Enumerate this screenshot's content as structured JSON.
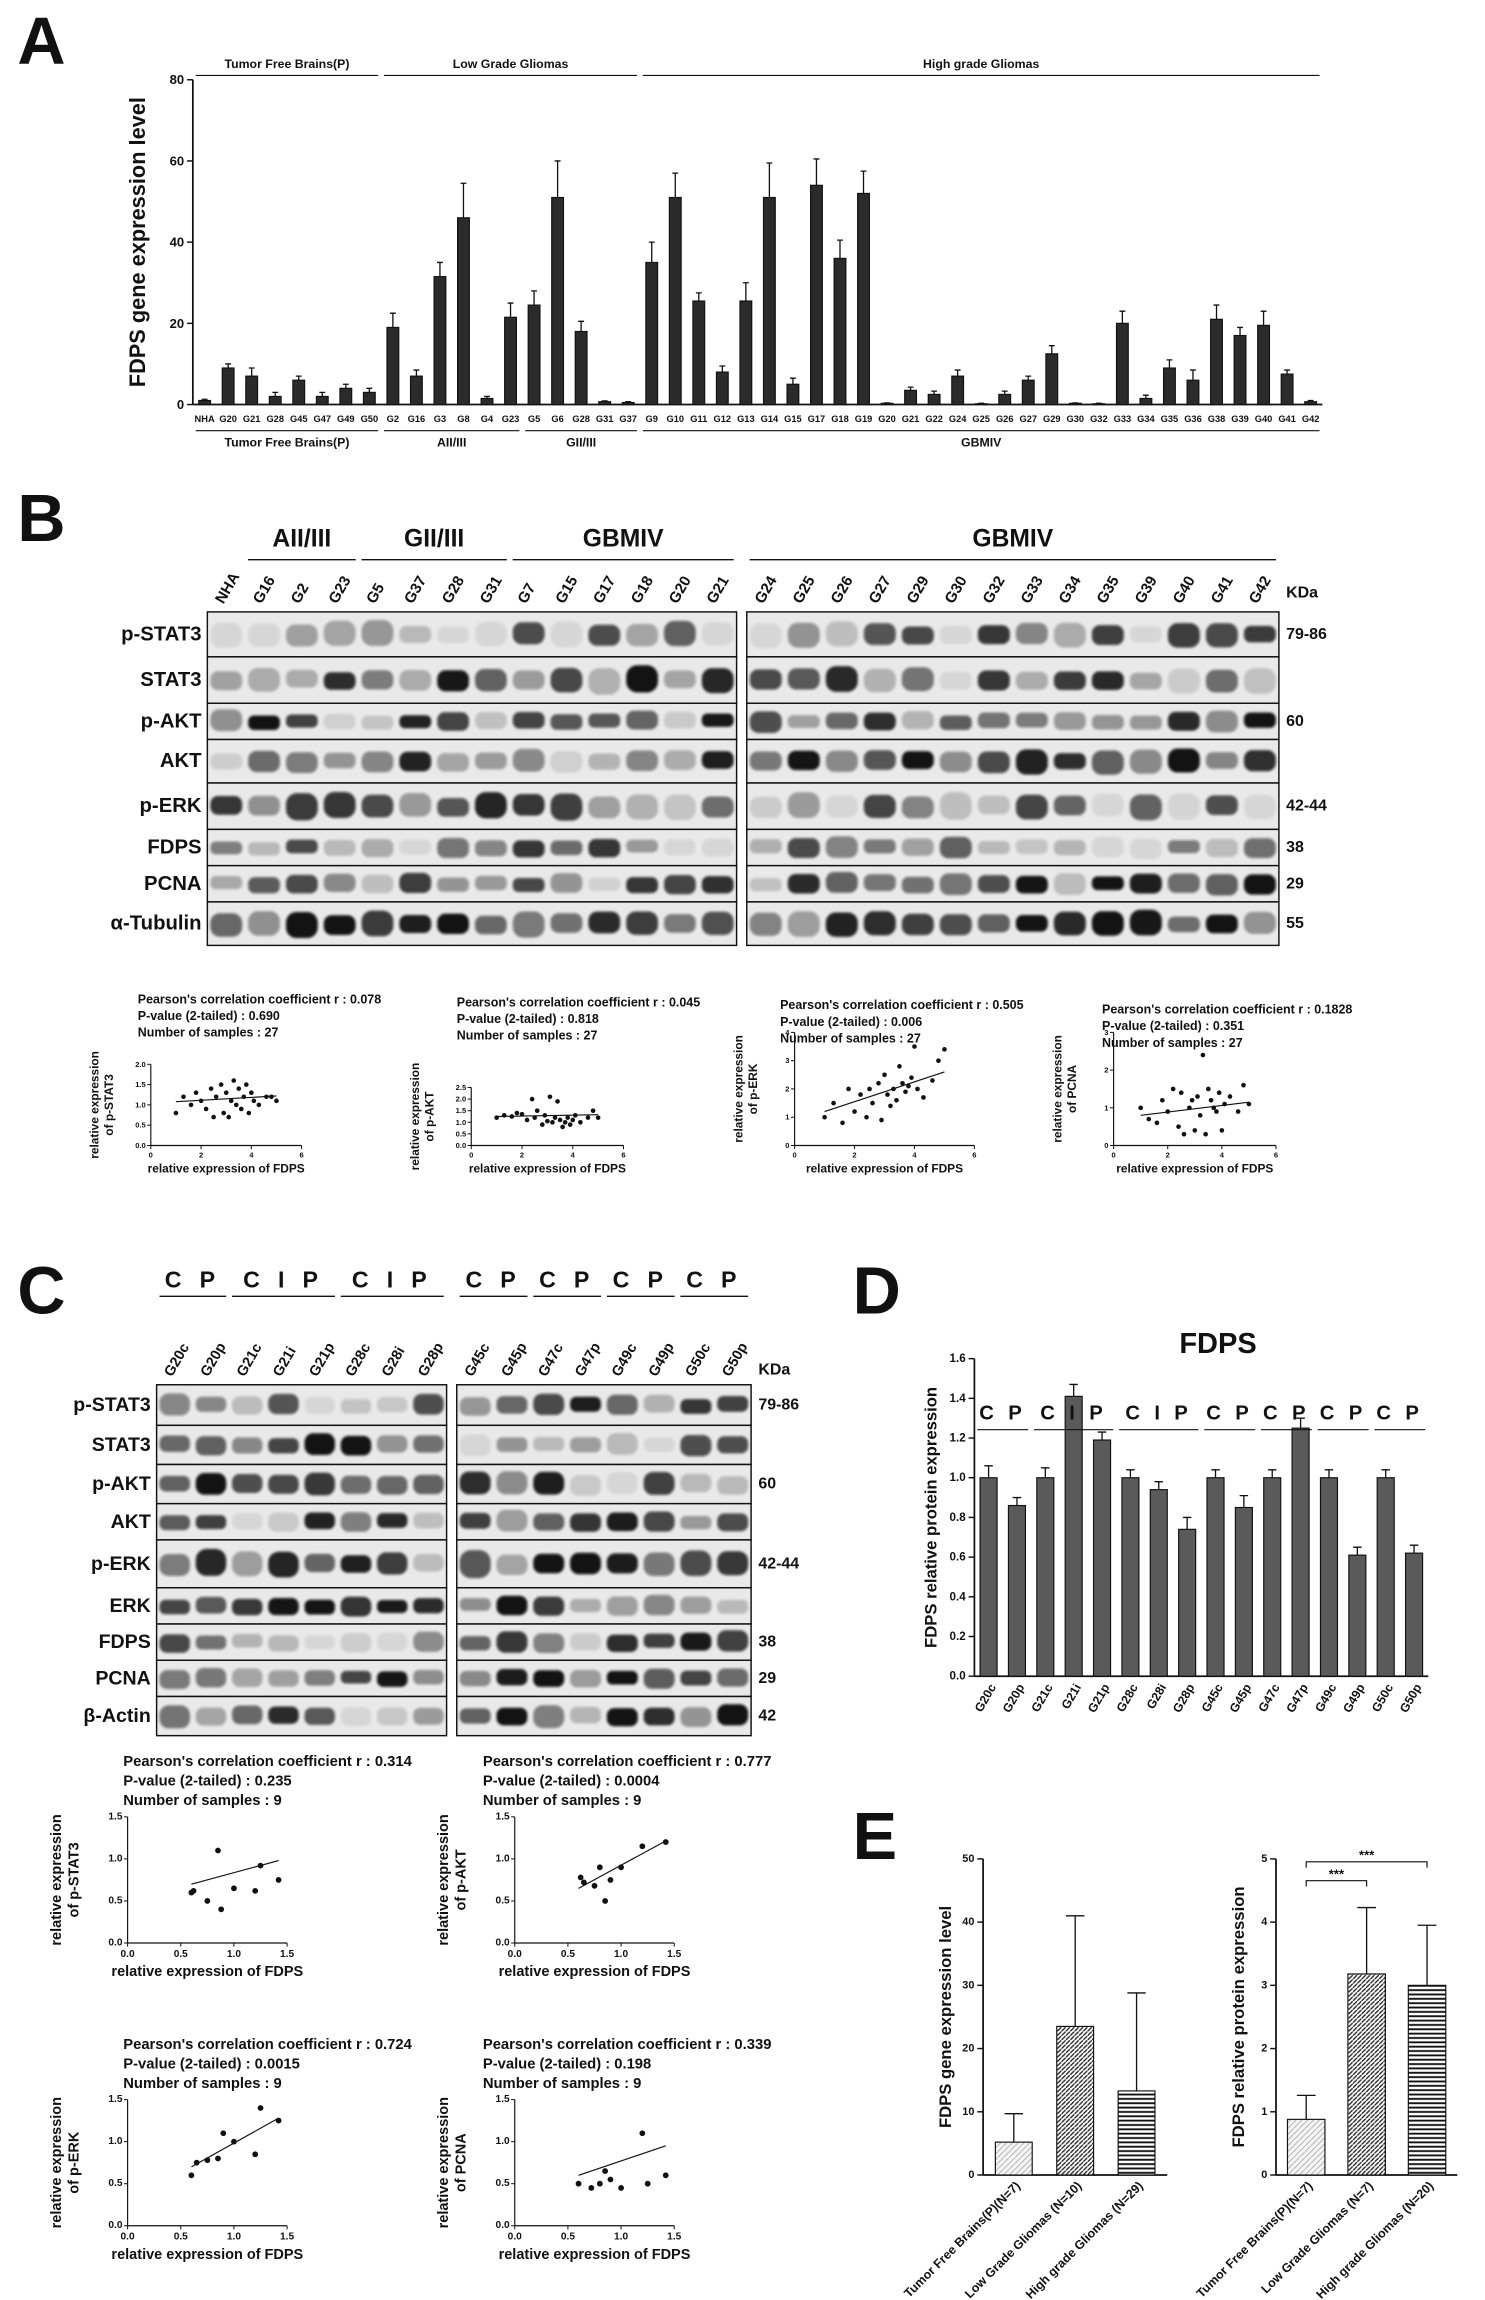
{
  "panel_labels": [
    "A",
    "B",
    "C",
    "D",
    "E"
  ],
  "chart_data": [
    {
      "type": "bar",
      "ylabel": "FDPS gene expression level",
      "categories": [
        "NHA",
        "G20",
        "G21",
        "G28",
        "G45",
        "G47",
        "G49",
        "G50",
        "G2",
        "G16",
        "G3",
        "G8",
        "G4",
        "G23",
        "G5",
        "G6",
        "G28",
        "G31",
        "G37",
        "G9",
        "G10",
        "G11",
        "G12",
        "G13",
        "G14",
        "G15",
        "G17",
        "G18",
        "G19",
        "G20",
        "G21",
        "G22",
        "G24",
        "G25",
        "G26",
        "G27",
        "G29",
        "G30",
        "G32",
        "G33",
        "G34",
        "G35",
        "G36",
        "G38",
        "G39",
        "G40",
        "G41",
        "G42"
      ],
      "values": [
        1,
        9,
        7,
        2,
        6,
        2,
        4,
        3,
        19,
        7,
        31.5,
        46,
        1.5,
        21.5,
        24.5,
        51,
        18,
        0.7,
        0.5,
        35,
        51,
        25.5,
        8,
        25.5,
        51,
        5,
        54,
        36,
        52,
        0.3,
        3.5,
        2.5,
        7,
        0.2,
        2.5,
        6,
        12.5,
        0.3,
        0.2,
        20,
        1.5,
        9,
        6,
        21,
        17,
        19.5,
        7.5,
        0.7
      ],
      "errors": [
        0.3,
        1,
        2,
        1,
        1,
        1,
        1,
        1,
        3.5,
        1.5,
        3.5,
        8.5,
        0.5,
        3.5,
        3.5,
        9,
        2.5,
        0.2,
        0.2,
        5,
        6,
        2,
        1.5,
        4.5,
        8.5,
        1.5,
        6.5,
        4.5,
        5.5,
        0.1,
        0.8,
        0.8,
        1.5,
        0.1,
        0.8,
        1,
        2,
        0.1,
        0.1,
        3,
        0.8,
        2,
        2.5,
        3.5,
        2,
        3.5,
        1,
        0.3
      ],
      "color": "#2b2b2b",
      "ylim": [
        0,
        80
      ],
      "yticks": [
        0,
        20,
        40,
        60,
        80
      ],
      "top_groups": [
        "Tumor Free Brains(P)",
        "Low Grade Gliomas",
        "High grade Gliomas"
      ],
      "bottom_groups": [
        "Tumor Free Brains(P)",
        "AII/III",
        "GII/III",
        "GBMIV"
      ]
    },
    {
      "type": "scatter",
      "title_lines": [
        "Pearson's correlation coefficient r : 0.078",
        "P-value (2-tailed) : 0.690",
        "Number of samples : 27"
      ],
      "ylabel_lines": [
        "relative expression",
        "of p-STAT3"
      ],
      "xlabel": "relative expression of FDPS",
      "x": [
        1.0,
        1.3,
        1.6,
        1.8,
        2.0,
        2.2,
        2.4,
        2.5,
        2.6,
        2.8,
        2.9,
        3.0,
        3.1,
        3.2,
        3.3,
        3.4,
        3.5,
        3.6,
        3.7,
        3.8,
        3.9,
        4.0,
        4.1,
        4.3,
        4.6,
        4.8,
        5.0
      ],
      "y": [
        0.8,
        1.2,
        1.0,
        1.3,
        1.1,
        0.9,
        1.4,
        0.7,
        1.2,
        1.5,
        0.8,
        1.3,
        0.7,
        1.1,
        1.6,
        1.0,
        1.4,
        0.9,
        1.2,
        1.5,
        0.8,
        1.3,
        1.1,
        1.0,
        1.2,
        1.2,
        1.1
      ],
      "trend_line": {
        "x": [
          1,
          5
        ],
        "y": [
          1.08,
          1.22
        ]
      },
      "xlim": [
        0,
        6
      ],
      "xticks": [
        0,
        2,
        4,
        6
      ],
      "ylim": [
        0,
        2
      ],
      "yticks": [
        {
          "value": 0,
          "label": "0.0"
        },
        0.5,
        {
          "value": 1,
          "label": "1.0"
        },
        1.5,
        {
          "value": 2,
          "label": "2.0"
        }
      ],
      "color": "#111111"
    },
    {
      "type": "scatter",
      "title_lines": [
        "Pearson's correlation coefficient r : 0.045",
        "P-value (2-tailed) : 0.818",
        "Number of samples : 27"
      ],
      "ylabel_lines": [
        "relative expression",
        "of p-AKT"
      ],
      "xlabel": "relative expression of FDPS",
      "x": [
        1.0,
        1.3,
        1.6,
        1.8,
        2.0,
        2.2,
        2.4,
        2.5,
        2.6,
        2.8,
        2.9,
        3.0,
        3.1,
        3.2,
        3.3,
        3.4,
        3.5,
        3.6,
        3.7,
        3.8,
        3.9,
        4.0,
        4.1,
        4.3,
        4.6,
        4.8,
        5.0
      ],
      "y": [
        1.2,
        1.3,
        1.25,
        1.4,
        1.35,
        1.1,
        2.0,
        1.2,
        1.5,
        0.9,
        1.3,
        1.05,
        2.1,
        1.0,
        1.2,
        1.9,
        1.1,
        0.8,
        1.0,
        1.2,
        0.9,
        1.1,
        1.3,
        1.0,
        1.2,
        1.5,
        1.2
      ],
      "trend_line": {
        "x": [
          1,
          5
        ],
        "y": [
          1.25,
          1.33
        ]
      },
      "xlim": [
        0,
        6
      ],
      "xticks": [
        0,
        2,
        4,
        6
      ],
      "ylim": [
        0,
        2.5
      ],
      "yticks": [
        {
          "value": 0,
          "label": "0.0"
        },
        0.5,
        {
          "value": 1,
          "label": "1.0"
        },
        1.5,
        {
          "value": 2,
          "label": "2.0"
        },
        2.5
      ],
      "color": "#111111"
    },
    {
      "type": "scatter",
      "title_lines": [
        "Pearson's correlation coefficient r : 0.505",
        "P-value (2-tailed) : 0.006",
        "Number of samples : 27"
      ],
      "ylabel_lines": [
        "relative expression",
        "of p-ERK"
      ],
      "xlabel": "relative expression of FDPS",
      "x": [
        1.0,
        1.3,
        1.6,
        1.8,
        2.0,
        2.2,
        2.4,
        2.5,
        2.6,
        2.8,
        2.9,
        3.0,
        3.1,
        3.2,
        3.3,
        3.4,
        3.5,
        3.6,
        3.7,
        3.8,
        3.9,
        4.0,
        4.1,
        4.3,
        4.6,
        4.8,
        5.0
      ],
      "y": [
        1.0,
        1.5,
        0.8,
        2.0,
        1.2,
        1.8,
        1.0,
        2.0,
        1.5,
        2.2,
        0.9,
        2.5,
        1.8,
        1.4,
        2.0,
        1.6,
        2.8,
        2.2,
        1.9,
        2.1,
        2.4,
        3.5,
        2.0,
        1.7,
        2.3,
        3.0,
        3.4
      ],
      "trend_line": {
        "x": [
          1,
          5
        ],
        "y": [
          1.2,
          2.6
        ]
      },
      "xlim": [
        0,
        6
      ],
      "xticks": [
        0,
        2,
        4,
        6
      ],
      "ylim": [
        0,
        4
      ],
      "yticks": [
        0,
        1,
        2,
        3,
        4
      ],
      "color": "#111111"
    },
    {
      "type": "scatter",
      "title_lines": [
        "Pearson's correlation coefficient r : 0.1828",
        "P-value (2-tailed) : 0.351",
        "Number of samples : 27"
      ],
      "ylabel_lines": [
        "relative expression",
        "of PCNA"
      ],
      "xlabel": "relative expression of FDPS",
      "x": [
        1.0,
        1.3,
        1.6,
        1.8,
        2.0,
        2.2,
        2.4,
        2.5,
        2.6,
        2.8,
        2.9,
        3.0,
        3.1,
        3.2,
        3.3,
        3.4,
        3.5,
        3.6,
        3.7,
        3.8,
        3.9,
        4.0,
        4.1,
        4.3,
        4.6,
        4.8,
        5.0
      ],
      "y": [
        1.0,
        0.7,
        0.6,
        1.2,
        0.9,
        1.5,
        0.5,
        1.4,
        0.3,
        1.0,
        1.2,
        0.4,
        1.3,
        0.8,
        2.4,
        0.3,
        1.5,
        1.2,
        1.0,
        0.9,
        1.4,
        0.4,
        1.1,
        1.3,
        0.9,
        1.6,
        1.1
      ],
      "trend_line": {
        "x": [
          1,
          5
        ],
        "y": [
          0.8,
          1.15
        ]
      },
      "xlim": [
        0,
        6
      ],
      "xticks": [
        0,
        2,
        4,
        6
      ],
      "ylim": [
        0,
        3
      ],
      "yticks": [
        0,
        1,
        2,
        3
      ],
      "color": "#111111"
    },
    {
      "type": "scatter",
      "title_lines": [
        "Pearson's correlation coefficient r : 0.314",
        "P-value (2-tailed) : 0.235",
        "Number of samples : 9"
      ],
      "ylabel_lines": [
        "relative expression",
        "of p-STAT3"
      ],
      "xlabel": "relative expression of FDPS",
      "x": [
        0.6,
        0.62,
        0.75,
        0.85,
        0.88,
        1.0,
        1.2,
        1.25,
        1.42
      ],
      "y": [
        0.6,
        0.62,
        0.5,
        1.1,
        0.4,
        0.65,
        0.62,
        0.92,
        0.75
      ],
      "trend_line": {
        "x": [
          0.6,
          1.42
        ],
        "y": [
          0.7,
          0.98
        ]
      },
      "xlim": [
        0,
        1.5
      ],
      "xticks": [
        {
          "value": 0,
          "label": "0.0"
        },
        0.5,
        {
          "value": 1,
          "label": "1.0"
        },
        1.5
      ],
      "ylim": [
        0,
        1.5
      ],
      "yticks": [
        {
          "value": 0,
          "label": "0.0"
        },
        0.5,
        {
          "value": 1,
          "label": "1.0"
        },
        1.5
      ],
      "color": "#111111"
    },
    {
      "type": "scatter",
      "title_lines": [
        "Pearson's correlation coefficient r : 0.777",
        "P-value (2-tailed) : 0.0004",
        "Number of samples : 9"
      ],
      "ylabel_lines": [
        "relative expression",
        "of p-AKT"
      ],
      "xlabel": "relative expression of FDPS",
      "x": [
        0.62,
        0.65,
        0.75,
        0.8,
        0.85,
        0.9,
        1.0,
        1.2,
        1.42
      ],
      "y": [
        0.78,
        0.72,
        0.68,
        0.9,
        0.5,
        0.75,
        0.9,
        1.15,
        1.2
      ],
      "trend_line": {
        "x": [
          0.6,
          1.4
        ],
        "y": [
          0.65,
          1.2
        ]
      },
      "xlim": [
        0,
        1.5
      ],
      "xticks": [
        {
          "value": 0,
          "label": "0.0"
        },
        0.5,
        {
          "value": 1,
          "label": "1.0"
        },
        1.5
      ],
      "ylim": [
        0,
        1.5
      ],
      "yticks": [
        {
          "value": 0,
          "label": "0.0"
        },
        0.5,
        {
          "value": 1,
          "label": "1.0"
        },
        1.5
      ],
      "color": "#111111"
    },
    {
      "type": "scatter",
      "title_lines": [
        "Pearson's correlation coefficient r : 0.724",
        "P-value (2-tailed) : 0.0015",
        "Number of samples : 9"
      ],
      "ylabel_lines": [
        "relative expression",
        "of p-ERK"
      ],
      "xlabel": "relative expression of FDPS",
      "x": [
        0.6,
        0.65,
        0.75,
        0.85,
        0.9,
        1.0,
        1.2,
        1.25,
        1.42
      ],
      "y": [
        0.6,
        0.75,
        0.78,
        0.8,
        1.1,
        1.0,
        0.85,
        1.4,
        1.25
      ],
      "trend_line": {
        "x": [
          0.6,
          1.42
        ],
        "y": [
          0.7,
          1.28
        ]
      },
      "xlim": [
        0,
        1.5
      ],
      "xticks": [
        {
          "value": 0,
          "label": "0.0"
        },
        0.5,
        {
          "value": 1,
          "label": "1.0"
        },
        1.5
      ],
      "ylim": [
        0,
        1.5
      ],
      "yticks": [
        {
          "value": 0,
          "label": "0.0"
        },
        0.5,
        {
          "value": 1,
          "label": "1.0"
        },
        1.5
      ],
      "color": "#111111"
    },
    {
      "type": "scatter",
      "title_lines": [
        "Pearson's correlation coefficient r : 0.339",
        "P-value (2-tailed) : 0.198",
        "Number of samples : 9"
      ],
      "ylabel_lines": [
        "relative expression",
        "of PCNA"
      ],
      "xlabel": "relative expression of FDPS",
      "x": [
        0.6,
        0.72,
        0.8,
        0.85,
        0.9,
        1.0,
        1.2,
        1.25,
        1.42
      ],
      "y": [
        0.5,
        0.45,
        0.5,
        0.65,
        0.55,
        0.45,
        1.1,
        0.5,
        0.6
      ],
      "trend_line": {
        "x": [
          0.6,
          1.42
        ],
        "y": [
          0.6,
          0.95
        ]
      },
      "xlim": [
        0,
        1.5
      ],
      "xticks": [
        {
          "value": 0,
          "label": "0.0"
        },
        0.5,
        {
          "value": 1,
          "label": "1.0"
        },
        1.5
      ],
      "ylim": [
        0,
        1.5
      ],
      "yticks": [
        {
          "value": 0,
          "label": "0.0"
        },
        0.5,
        {
          "value": 1,
          "label": "1.0"
        },
        1.5
      ],
      "color": "#111111"
    },
    {
      "type": "bar",
      "title": "FDPS",
      "ylabel": "FDPS relative protein expression",
      "categories": [
        "G20c",
        "G20p",
        "G21c",
        "G21i",
        "G21p",
        "G28c",
        "G28i",
        "G28p",
        "G45c",
        "G45p",
        "G47c",
        "G47p",
        "G49c",
        "G49p",
        "G50c",
        "G50p"
      ],
      "values": [
        1.0,
        0.86,
        1.0,
        1.41,
        1.19,
        1.0,
        0.94,
        0.74,
        1.0,
        0.85,
        1.0,
        1.25,
        1.0,
        0.61,
        1.0,
        0.62
      ],
      "errors": [
        0.06,
        0.04,
        0.05,
        0.06,
        0.04,
        0.04,
        0.04,
        0.06,
        0.04,
        0.06,
        0.04,
        0.05,
        0.04,
        0.04,
        0.04,
        0.04
      ],
      "color": "#5a5a5a",
      "ylim": [
        0,
        1.6
      ],
      "yticks": [
        {
          "value": 0,
          "label": "0.0"
        },
        0.2,
        0.4,
        0.6,
        0.8,
        {
          "value": 1,
          "label": "1.0"
        },
        1.2,
        1.4,
        1.6
      ],
      "top_groups": [
        "C P",
        "C I P",
        "C I P",
        "C P",
        "C P",
        "C P",
        "C P"
      ]
    },
    {
      "type": "bar",
      "ylabel": "FDPS gene expression level",
      "categories": [
        "Tumor Free Brains(P)(N=7)",
        "Low Grade Gliomas (N=10)",
        "High grade Gliomas (N=29)"
      ],
      "values": [
        5.2,
        23.5,
        13.3
      ],
      "errors": [
        4.5,
        17.5,
        15.5
      ],
      "hatches": [
        "dots",
        "diagonal",
        "horizontal"
      ],
      "ylim": [
        0,
        50
      ],
      "yticks": [
        0,
        10,
        20,
        30,
        40,
        50
      ]
    },
    {
      "type": "bar",
      "ylabel": "FDPS relative protein expression",
      "categories": [
        "Tumor Free Brains(P)(N=7)",
        "Low Grade Gliomas (N=7)",
        "High grade Gliomas (N=20)"
      ],
      "values": [
        0.88,
        3.18,
        3.0
      ],
      "errors": [
        0.38,
        1.05,
        0.95
      ],
      "hatches": [
        "dots",
        "diagonal",
        "horizontal"
      ],
      "ylim": [
        0,
        5
      ],
      "yticks": [
        0,
        1,
        2,
        3,
        4,
        5
      ],
      "significance": [
        "***",
        "***"
      ]
    }
  ],
  "blots": [
    {
      "groups": [
        "AII/III",
        "GII/III",
        "GBMIV",
        "GBMIV"
      ],
      "lanes": [
        [
          "NHA",
          "G16",
          "G2",
          "G23",
          "G5",
          "G37",
          "G28",
          "G31",
          "G7",
          "G15",
          "G17",
          "G18",
          "G20",
          "G21"
        ],
        [
          "G24",
          "G25",
          "G26",
          "G27",
          "G29",
          "G30",
          "G32",
          "G33",
          "G34",
          "G35",
          "G39",
          "G40",
          "G41",
          "G42"
        ]
      ],
      "rows": [
        "p-STAT3",
        "STAT3",
        "p-AKT",
        "AKT",
        "p-ERK",
        "FDPS",
        "PCNA",
        "α-Tubulin"
      ],
      "kda": [
        "79-86",
        null,
        "60",
        null,
        "42-44",
        "38",
        "29",
        "55"
      ],
      "kda_header": "KDa"
    },
    {
      "groups": [
        "C P",
        "C I P",
        "C I P",
        "C P",
        "C P",
        "C P",
        "C P"
      ],
      "lanes": [
        [
          "G20c",
          "G20p",
          "G21c",
          "G21i",
          "G21p",
          "G28c",
          "G28i",
          "G28p"
        ],
        [
          "G45c",
          "G45p",
          "G47c",
          "G47p",
          "G49c",
          "G49p",
          "G50c",
          "G50p"
        ]
      ],
      "rows": [
        "p-STAT3",
        "STAT3",
        "p-AKT",
        "AKT",
        "p-ERK",
        "ERK",
        "FDPS",
        "PCNA",
        "β-Actin"
      ],
      "kda": [
        "79-86",
        null,
        "60",
        null,
        "42-44",
        null,
        "38",
        "29",
        "42"
      ],
      "kda_header": "KDa"
    }
  ]
}
